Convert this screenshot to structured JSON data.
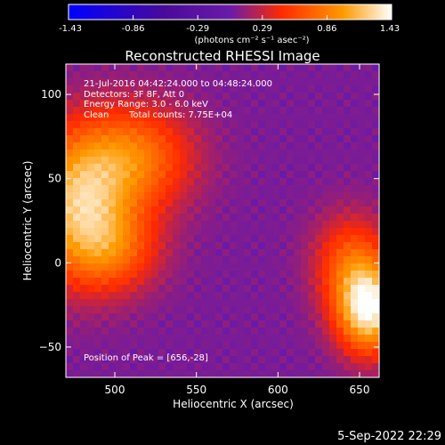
{
  "colorbar": {
    "ticks": [
      "-1.43",
      "-0.86",
      "-0.29",
      "0.29",
      "0.86",
      "1.43"
    ],
    "unit_label": "(photons cm⁻² s⁻¹ asec⁻²)"
  },
  "chart_data": {
    "type": "heatmap",
    "title": "Reconstructed RHESSI Image",
    "xlabel": "Heliocentric X (arcsec)",
    "ylabel": "Heliocentric Y (arcsec)",
    "xlim": [
      470,
      662
    ],
    "ylim": [
      -68,
      118
    ],
    "xticks": [
      500,
      550,
      600,
      650
    ],
    "yticks": [
      -50,
      0,
      50,
      100
    ],
    "xtick_labels": [
      "500",
      "550",
      "600",
      "650"
    ],
    "ytick_labels": [
      "−50",
      "0",
      "50",
      "100"
    ],
    "zlim": [
      -1.43,
      1.43
    ],
    "colormap": "blue-purple-red-yellow-white",
    "colormap_stops": [
      "#0000ff",
      "#4a0a9a",
      "#6a1aa8",
      "#ff2a00",
      "#ff9a00",
      "#ffffff"
    ],
    "sources": [
      {
        "x": 476,
        "y": 35,
        "peak": 1.0,
        "sx": 22,
        "sy": 30
      },
      {
        "x": 512,
        "y": 62,
        "peak": 0.75,
        "sx": 25,
        "sy": 22
      },
      {
        "x": 500,
        "y": 8,
        "peak": 0.55,
        "sx": 20,
        "sy": 18
      },
      {
        "x": 656,
        "y": -28,
        "peak": 1.3,
        "sx": 14,
        "sy": 18
      },
      {
        "x": 645,
        "y": 0,
        "peak": 0.6,
        "sx": 16,
        "sy": 20
      }
    ],
    "background_level": 0.05,
    "peak_position": [
      656,
      -28
    ]
  },
  "info": {
    "line1": "21-Jul-2016 04:42:24.000 to 04:48:24.000",
    "line2": "Detectors: 3F 8F, Att 0",
    "line3": "Energy Range: 3.0 - 6.0 keV",
    "line4_a": "Clean",
    "line4_b": "Total counts: 7.75E+04",
    "peak_text": "Position of Peak = [656,-28]"
  },
  "footer": {
    "timestamp": "5-Sep-2022 22:29"
  }
}
